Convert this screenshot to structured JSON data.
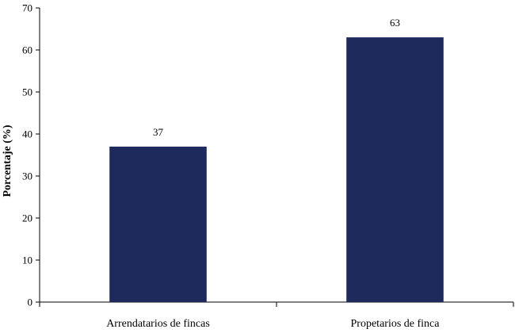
{
  "chart_data": {
    "type": "bar",
    "title": "",
    "xlabel": "",
    "ylabel": "Porcentaje  (%)",
    "categories": [
      "Arrendatarios de fincas",
      "Propetarios de finca"
    ],
    "values": [
      37,
      63
    ],
    "data_labels": [
      "37",
      "63"
    ],
    "ylim": [
      0,
      70
    ],
    "yticks": [
      0,
      10,
      20,
      30,
      40,
      50,
      60,
      70
    ],
    "grid": false,
    "legend": "none",
    "bar_color": "#1f2a5c"
  }
}
